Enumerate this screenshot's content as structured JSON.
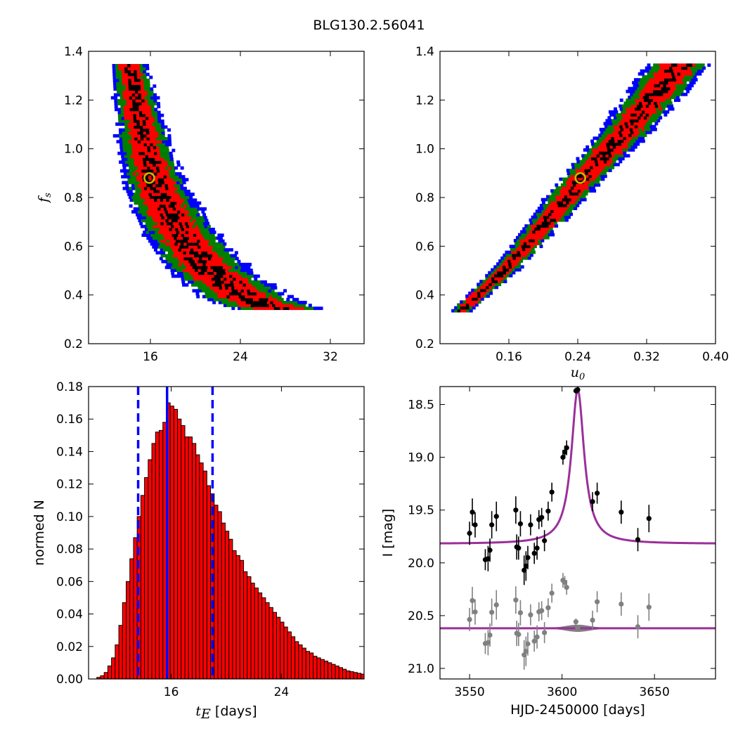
{
  "figure_title": "BLG130.2.56041",
  "colors": {
    "sigma3": "#0000ff",
    "sigma2": "#007f00",
    "sigma1": "#ff0000",
    "best": "#000000",
    "marker_edge": "#bfbf00",
    "hist_fill": "#ff0000",
    "dashed": "#0000ff",
    "model": "#9b2f9b",
    "residual": "#808080"
  },
  "chart_data": [
    {
      "type": "heatmap",
      "panel": "top-left",
      "description": "posterior density f_s vs t_E with 1/2/3-sigma contours",
      "xlabel": "",
      "ylabel": "f_s",
      "xlim": [
        10.5,
        35.0
      ],
      "ylim": [
        0.2,
        1.4
      ],
      "xticks": [
        "16",
        "24",
        "32"
      ],
      "yticks": [
        "0.2",
        "0.4",
        "0.6",
        "0.8",
        "1.0",
        "1.2",
        "1.4"
      ],
      "ridge": [
        [
          14.0,
          1.34
        ],
        [
          15.4,
          1.0
        ],
        [
          16.5,
          0.82
        ],
        [
          18.5,
          0.65
        ],
        [
          21.0,
          0.5
        ],
        [
          24.5,
          0.38
        ],
        [
          27.0,
          0.34
        ]
      ],
      "best_fit": {
        "t_E": 15.9,
        "f_s": 0.88
      }
    },
    {
      "type": "heatmap",
      "panel": "top-right",
      "description": "posterior density f_s vs u_0 with 1/2/3-sigma contours",
      "xlabel": "u_0",
      "ylabel": "",
      "xlim": [
        0.08,
        0.4
      ],
      "ylim": [
        0.2,
        1.4
      ],
      "xticks": [
        "0.16",
        "0.24",
        "0.32",
        "0.40"
      ],
      "yticks": [
        "0.2",
        "0.4",
        "0.6",
        "0.8",
        "1.0",
        "1.2",
        "1.4"
      ],
      "ridge": [
        [
          0.103,
          0.33
        ],
        [
          0.16,
          0.52
        ],
        [
          0.21,
          0.73
        ],
        [
          0.243,
          0.87
        ],
        [
          0.29,
          1.05
        ],
        [
          0.335,
          1.25
        ],
        [
          0.355,
          1.34
        ]
      ],
      "best_fit": {
        "u_0": 0.243,
        "f_s": 0.88
      }
    },
    {
      "type": "bar",
      "panel": "bottom-left",
      "description": "normalized histogram of t_E",
      "xlabel": "t_E [days]",
      "ylabel": "normed N",
      "xlim": [
        10.0,
        30.0
      ],
      "ylim": [
        0.0,
        0.18
      ],
      "xticks": [
        "16",
        "24"
      ],
      "yticks": [
        "0.00",
        "0.02",
        "0.04",
        "0.06",
        "0.08",
        "0.10",
        "0.12",
        "0.14",
        "0.16",
        "0.18"
      ],
      "bin_start": 10.6,
      "bin_width": 0.2663,
      "values": [
        0.001,
        0.002,
        0.004,
        0.008,
        0.013,
        0.021,
        0.033,
        0.047,
        0.06,
        0.074,
        0.087,
        0.1,
        0.113,
        0.124,
        0.135,
        0.145,
        0.152,
        0.153,
        0.158,
        0.17,
        0.168,
        0.166,
        0.16,
        0.156,
        0.149,
        0.149,
        0.145,
        0.138,
        0.133,
        0.128,
        0.119,
        0.114,
        0.107,
        0.103,
        0.096,
        0.091,
        0.086,
        0.079,
        0.076,
        0.073,
        0.066,
        0.063,
        0.059,
        0.056,
        0.053,
        0.05,
        0.047,
        0.044,
        0.041,
        0.038,
        0.035,
        0.032,
        0.029,
        0.026,
        0.023,
        0.021,
        0.019,
        0.017,
        0.016,
        0.014,
        0.013,
        0.012,
        0.011,
        0.01,
        0.009,
        0.008,
        0.007,
        0.006,
        0.005,
        0.0045,
        0.004,
        0.0035,
        0.003,
        0.0025,
        0.002,
        0.0018,
        0.0015,
        0.0012,
        0.001,
        0.001
      ],
      "median": 15.7,
      "lower_bound": 13.6,
      "upper_bound": 19.0
    },
    {
      "type": "scatter",
      "panel": "bottom-right",
      "description": "light curve with model, residuals offset below",
      "xlabel": "HJD-2450000 [days]",
      "ylabel": "I [mag]",
      "xlim": [
        3534,
        3683
      ],
      "ylim": [
        21.1,
        18.33
      ],
      "xticks": [
        "3550",
        "3600",
        "3650"
      ],
      "yticks": [
        "18.5",
        "19.0",
        "19.5",
        "20.0",
        "20.5",
        "21.0"
      ],
      "model": {
        "t0": 3608.5,
        "baseline": 19.82,
        "peak": 18.36,
        "tau": 4.4
      },
      "residual_baseline": 20.62,
      "points": [
        {
          "x": 3550.0,
          "y": 19.72,
          "e": 0.11
        },
        {
          "x": 3551.5,
          "y": 19.52,
          "e": 0.13
        },
        {
          "x": 3553.0,
          "y": 19.64,
          "e": 0.12
        },
        {
          "x": 3558.5,
          "y": 19.97,
          "e": 0.1
        },
        {
          "x": 3560.0,
          "y": 19.96,
          "e": 0.12
        },
        {
          "x": 3561.0,
          "y": 19.88,
          "e": 0.11
        },
        {
          "x": 3562.0,
          "y": 19.64,
          "e": 0.13
        },
        {
          "x": 3564.5,
          "y": 19.56,
          "e": 0.14
        },
        {
          "x": 3575.0,
          "y": 19.5,
          "e": 0.13
        },
        {
          "x": 3575.5,
          "y": 19.85,
          "e": 0.12
        },
        {
          "x": 3576.5,
          "y": 19.86,
          "e": 0.11
        },
        {
          "x": 3577.5,
          "y": 19.63,
          "e": 0.12
        },
        {
          "x": 3579.5,
          "y": 20.07,
          "e": 0.14
        },
        {
          "x": 3580.5,
          "y": 20.03,
          "e": 0.14
        },
        {
          "x": 3581.5,
          "y": 19.95,
          "e": 0.11
        },
        {
          "x": 3583.0,
          "y": 19.64,
          "e": 0.1
        },
        {
          "x": 3585.0,
          "y": 19.91,
          "e": 0.1
        },
        {
          "x": 3586.5,
          "y": 19.86,
          "e": 0.11
        },
        {
          "x": 3587.5,
          "y": 19.59,
          "e": 0.09
        },
        {
          "x": 3589.0,
          "y": 19.57,
          "e": 0.09
        },
        {
          "x": 3590.5,
          "y": 19.79,
          "e": 0.1
        },
        {
          "x": 3592.5,
          "y": 19.51,
          "e": 0.09
        },
        {
          "x": 3594.5,
          "y": 19.33,
          "e": 0.09
        },
        {
          "x": 3600.5,
          "y": 19.0,
          "e": 0.07
        },
        {
          "x": 3601.5,
          "y": 18.95,
          "e": 0.06
        },
        {
          "x": 3602.5,
          "y": 18.91,
          "e": 0.07
        },
        {
          "x": 3607.5,
          "y": 18.37,
          "e": 0.03
        },
        {
          "x": 3608.5,
          "y": 18.36,
          "e": 0.03
        },
        {
          "x": 3616.5,
          "y": 19.42,
          "e": 0.09
        },
        {
          "x": 3619.0,
          "y": 19.34,
          "e": 0.1
        },
        {
          "x": 3632.0,
          "y": 19.52,
          "e": 0.11
        },
        {
          "x": 3641.0,
          "y": 19.78,
          "e": 0.11
        },
        {
          "x": 3647.0,
          "y": 19.58,
          "e": 0.13
        }
      ]
    }
  ]
}
